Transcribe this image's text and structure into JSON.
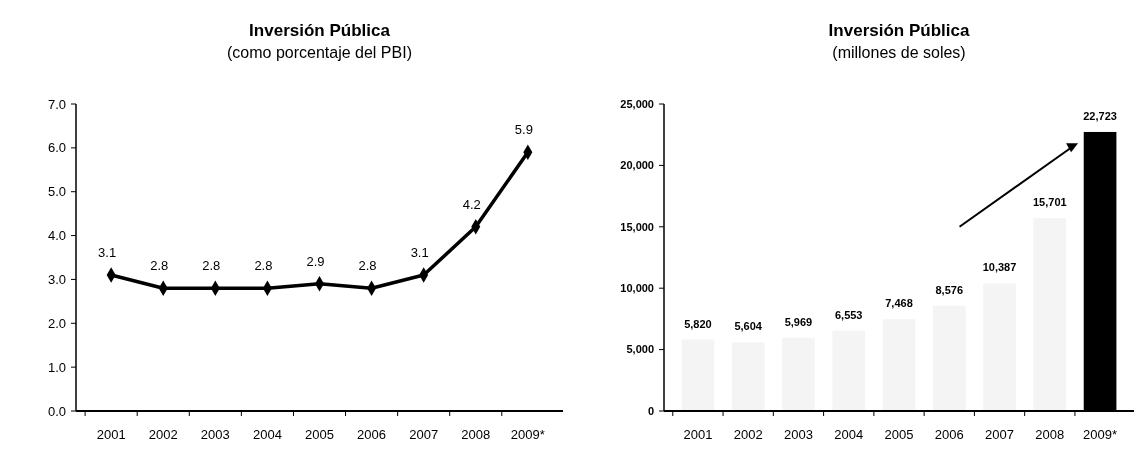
{
  "chart_data": [
    {
      "type": "line",
      "title": "Inversión Pública",
      "subtitle": "(como porcentaje del PBI)",
      "categories": [
        "2001",
        "2002",
        "2003",
        "2004",
        "2005",
        "2006",
        "2007",
        "2008",
        "2009*"
      ],
      "series": [
        {
          "color": "#000000",
          "values": [
            3.1,
            2.8,
            2.8,
            2.8,
            2.9,
            2.8,
            3.1,
            4.2,
            5.9
          ]
        }
      ],
      "ylim": [
        0,
        7
      ],
      "yticks": [
        {
          "value": 0,
          "label": "0.0"
        },
        {
          "value": 1,
          "label": "1.0"
        },
        {
          "value": 2,
          "label": "2.0"
        },
        {
          "value": 3,
          "label": "3.0"
        },
        {
          "value": 4,
          "label": "4.0"
        },
        {
          "value": 5,
          "label": "5.0"
        },
        {
          "value": 6,
          "label": "6.0"
        },
        {
          "value": 7,
          "label": "7.0"
        }
      ],
      "marker": "diamond",
      "line_style": "solid",
      "data_labels": true,
      "grid": false
    },
    {
      "type": "bar",
      "title": "Inversión Pública",
      "subtitle": "(millones de soles)",
      "categories": [
        "2001",
        "2002",
        "2003",
        "2004",
        "2005",
        "2006",
        "2007",
        "2008",
        "2009*"
      ],
      "values": [
        5820,
        5604,
        5969,
        6553,
        7468,
        8576,
        10387,
        15701,
        22723
      ],
      "colors": [
        "#f4f4f4",
        "#f4f4f4",
        "#f4f4f4",
        "#f4f4f4",
        "#f4f4f4",
        "#f4f4f4",
        "#f4f4f4",
        "#f4f4f4",
        "#000000"
      ],
      "value_labels": [
        "5,820",
        "5,604",
        "5,969",
        "6,553",
        "7,468",
        "8,576",
        "10,387",
        "15,701",
        "22,723"
      ],
      "ylim": [
        0,
        25000
      ],
      "yticks": [
        {
          "value": 0,
          "label": "0"
        },
        {
          "value": 5000,
          "label": "5,000"
        },
        {
          "value": 10000,
          "label": "10,000"
        },
        {
          "value": 15000,
          "label": "15,000"
        },
        {
          "value": 20000,
          "label": "20,000"
        },
        {
          "value": 25000,
          "label": "25,000"
        }
      ],
      "grid": false
    }
  ]
}
